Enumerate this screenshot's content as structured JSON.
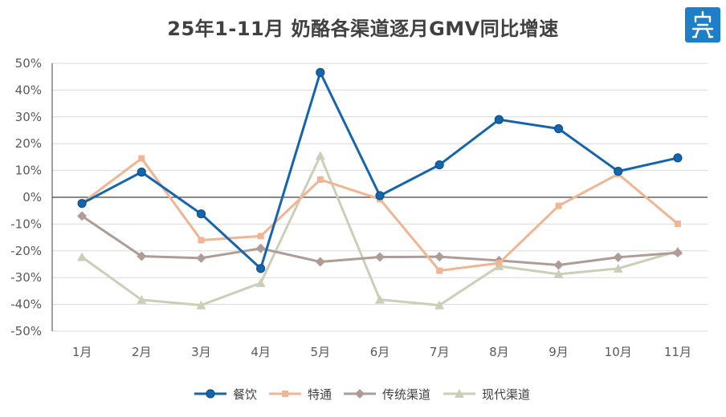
{
  "chart_data": {
    "type": "line",
    "title": "25年1-11月 奶酪各渠道逐月GMV同比增速",
    "categories": [
      "1月",
      "2月",
      "3月",
      "4月",
      "5月",
      "6月",
      "7月",
      "8月",
      "9月",
      "10月",
      "11月"
    ],
    "ylim": [
      -50,
      50
    ],
    "ytick_labels": [
      "50%",
      "40%",
      "30%",
      "20%",
      "10%",
      "0%",
      "-10%",
      "-20%",
      "-30%",
      "-40%",
      "-50%"
    ],
    "y_unit": "%",
    "grid": true,
    "legend_position": "bottom",
    "series": [
      {
        "name": "餐饮",
        "color": "#1565ad",
        "marker": "circle",
        "values": [
          -2.3,
          9.4,
          -6.2,
          -26.6,
          46.6,
          0.6,
          12.1,
          29.0,
          25.6,
          9.7,
          14.7
        ]
      },
      {
        "name": "特通",
        "color": "#f0b592",
        "marker": "square",
        "values": [
          -2.2,
          14.5,
          -16.0,
          -14.5,
          6.6,
          -0.7,
          -27.4,
          -24.6,
          -3.2,
          8.7,
          -9.9
        ]
      },
      {
        "name": "传统渠道",
        "color": "#b09c97",
        "marker": "diamond",
        "values": [
          -7.0,
          -22.0,
          -22.7,
          -19.1,
          -24.1,
          -22.3,
          -22.2,
          -23.6,
          -25.3,
          -22.4,
          -20.7
        ]
      },
      {
        "name": "现代渠道",
        "color": "#cbcfb8",
        "marker": "triangle",
        "values": [
          -22.3,
          -38.3,
          -40.3,
          -32.0,
          15.5,
          -38.2,
          -40.3,
          -25.7,
          -28.7,
          -26.6,
          -20.1
        ]
      }
    ]
  },
  "logo": {
    "icon": "brand-logo-icon",
    "color": "#1e7fc8"
  }
}
